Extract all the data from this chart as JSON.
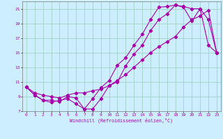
{
  "bg_color": "#cceeff",
  "line_color": "#aa00aa",
  "grid_color": "#99ccbb",
  "xlabel": "Windchill (Refroidissement éolien,°C)",
  "xlim": [
    -0.5,
    23.5
  ],
  "ylim": [
    7,
    22
  ],
  "xticks": [
    0,
    1,
    2,
    3,
    4,
    5,
    6,
    7,
    8,
    9,
    10,
    11,
    12,
    13,
    14,
    15,
    16,
    17,
    18,
    19,
    20,
    21,
    22,
    23
  ],
  "yticks": [
    7,
    9,
    11,
    13,
    15,
    17,
    19,
    21
  ],
  "line1_x": [
    0,
    1,
    2,
    3,
    4,
    5,
    6,
    7,
    8,
    9,
    10,
    11,
    12,
    13,
    14,
    15,
    16,
    17,
    18,
    19,
    20,
    21,
    22,
    23
  ],
  "line1_y": [
    10.3,
    9.2,
    8.5,
    8.2,
    8.5,
    8.7,
    8.0,
    7.3,
    8.7,
    10.2,
    11.2,
    13.3,
    14.3,
    16.0,
    17.5,
    19.5,
    21.2,
    21.3,
    21.5,
    21.2,
    19.3,
    21.0,
    16.0,
    15.0
  ],
  "line2_x": [
    0,
    1,
    2,
    3,
    4,
    5,
    6,
    7,
    8,
    9,
    10,
    11,
    12,
    13,
    14,
    15,
    16,
    17,
    18,
    19,
    20,
    21,
    22,
    23
  ],
  "line2_y": [
    10.3,
    9.2,
    8.5,
    8.5,
    8.3,
    9.0,
    8.8,
    7.3,
    7.3,
    8.7,
    10.5,
    11.0,
    13.2,
    14.8,
    16.0,
    18.0,
    19.5,
    20.3,
    21.5,
    21.3,
    21.0,
    21.0,
    19.5,
    15.0
  ],
  "line3_x": [
    0,
    1,
    2,
    3,
    4,
    5,
    6,
    7,
    8,
    9,
    10,
    11,
    12,
    13,
    14,
    15,
    16,
    17,
    18,
    19,
    20,
    21,
    22,
    23
  ],
  "line3_y": [
    10.3,
    9.5,
    9.2,
    9.0,
    8.8,
    9.2,
    9.5,
    9.5,
    9.8,
    10.0,
    10.5,
    11.2,
    12.0,
    13.0,
    14.0,
    15.0,
    15.8,
    16.5,
    17.2,
    18.5,
    19.5,
    20.0,
    20.8,
    15.0
  ]
}
